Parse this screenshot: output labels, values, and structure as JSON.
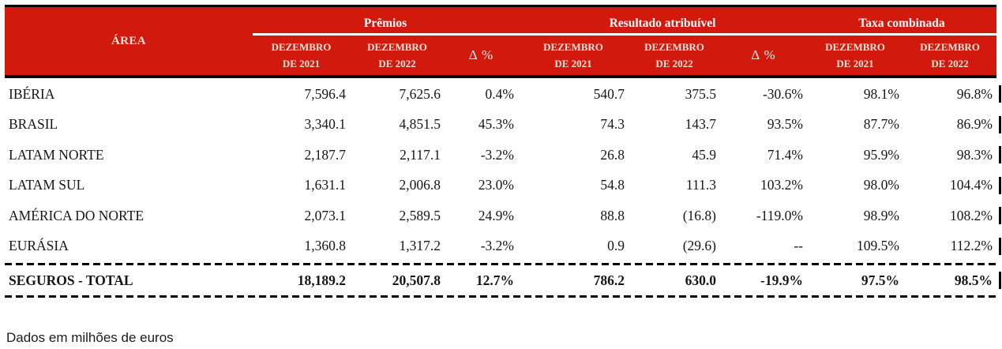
{
  "colors": {
    "header_bg": "#d2190e",
    "header_text": "#ffffff",
    "subheader_text": "#f6e4d6",
    "border": "#000000"
  },
  "table": {
    "area_header": "ÁREA",
    "groups": [
      {
        "label": "Prêmios"
      },
      {
        "label": "Resultado atribuível"
      },
      {
        "label": "Taxa combinada"
      }
    ],
    "period_2021": {
      "line1": "DEZEMBRO",
      "line2": "DE 2021"
    },
    "period_2022": {
      "line1": "DEZEMBRO",
      "line2": "DE 2022"
    },
    "delta_header": "Δ %",
    "rows": [
      {
        "area": "IBÉRIA",
        "values": [
          "7,596.4",
          "7,625.6",
          "0.4%",
          "540.7",
          "375.5",
          "-30.6%",
          "98.1%",
          "96.8%"
        ]
      },
      {
        "area": "BRASIL",
        "values": [
          "3,340.1",
          "4,851.5",
          "45.3%",
          "74.3",
          "143.7",
          "93.5%",
          "87.7%",
          "86.9%"
        ]
      },
      {
        "area": "LATAM NORTE",
        "values": [
          "2,187.7",
          "2,117.1",
          "-3.2%",
          "26.8",
          "45.9",
          "71.4%",
          "95.9%",
          "98.3%"
        ]
      },
      {
        "area": "LATAM SUL",
        "values": [
          "1,631.1",
          "2,006.8",
          "23.0%",
          "54.8",
          "111.3",
          "103.2%",
          "98.0%",
          "104.4%"
        ]
      },
      {
        "area": "AMÉRICA DO NORTE",
        "values": [
          "2,073.1",
          "2,589.5",
          "24.9%",
          "88.8",
          "(16.8)",
          "-119.0%",
          "98.9%",
          "108.2%"
        ]
      },
      {
        "area": "EURÁSIA",
        "values": [
          "1,360.8",
          "1,317.2",
          "-3.2%",
          "0.9",
          "(29.6)",
          "--",
          "109.5%",
          "112.2%"
        ]
      }
    ],
    "total": {
      "area": "SEGUROS - TOTAL",
      "values": [
        "18,189.2",
        "20,507.8",
        "12.7%",
        "786.2",
        "630.0",
        "-19.9%",
        "97.5%",
        "98.5%"
      ]
    }
  },
  "footnote": "Dados em milhões de euros"
}
